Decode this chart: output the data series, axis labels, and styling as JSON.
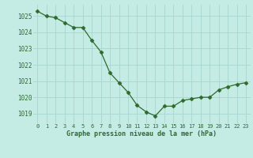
{
  "x": [
    0,
    1,
    2,
    3,
    4,
    5,
    6,
    7,
    8,
    9,
    10,
    11,
    12,
    13,
    14,
    15,
    16,
    17,
    18,
    19,
    20,
    21,
    22,
    23
  ],
  "y": [
    1025.3,
    1025.0,
    1024.9,
    1024.6,
    1024.3,
    1024.3,
    1023.5,
    1022.8,
    1021.5,
    1020.9,
    1020.3,
    1019.5,
    1019.1,
    1018.85,
    1019.45,
    1019.45,
    1019.8,
    1019.9,
    1020.0,
    1020.0,
    1020.45,
    1020.65,
    1020.8,
    1020.9
  ],
  "line_color": "#2d6b2d",
  "marker": "D",
  "marker_size": 2.5,
  "bg_color": "#c5ebe5",
  "grid_color": "#a8d5cf",
  "xlabel": "Graphe pression niveau de la mer (hPa)",
  "xlabel_color": "#2d6b2d",
  "tick_color": "#2d6b2d",
  "ylim": [
    1018.4,
    1025.7
  ],
  "yticks": [
    1019,
    1020,
    1021,
    1022,
    1023,
    1024,
    1025
  ],
  "xticks": [
    0,
    1,
    2,
    3,
    4,
    5,
    6,
    7,
    8,
    9,
    10,
    11,
    12,
    13,
    14,
    15,
    16,
    17,
    18,
    19,
    20,
    21,
    22,
    23
  ],
  "xtick_labels": [
    "0",
    "1",
    "2",
    "3",
    "4",
    "5",
    "6",
    "7",
    "8",
    "9",
    "10",
    "11",
    "12",
    "13",
    "14",
    "15",
    "16",
    "17",
    "18",
    "19",
    "20",
    "21",
    "22",
    "23"
  ]
}
